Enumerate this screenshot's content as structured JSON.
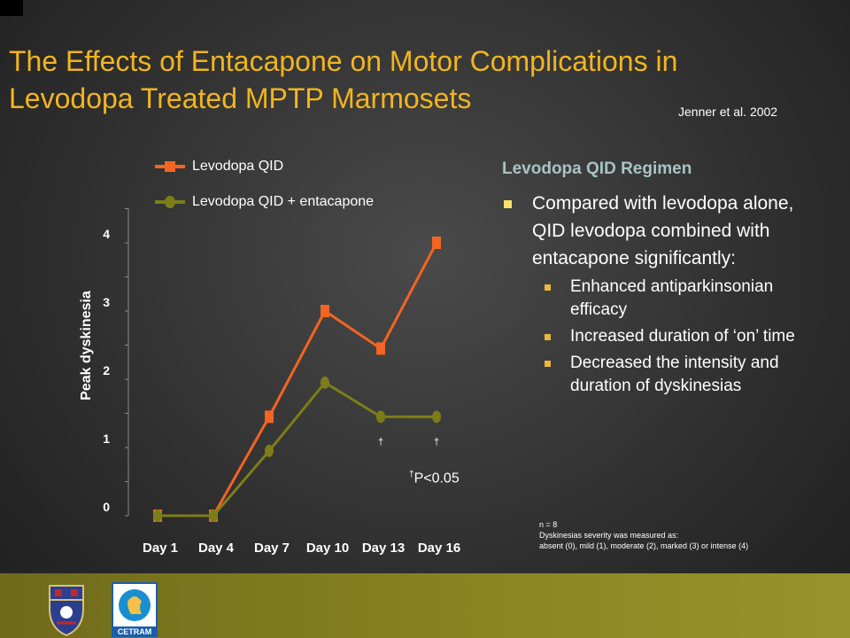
{
  "title": "The Effects of Entacapone on Motor Complications in Levodopa Treated MPTP Marmosets",
  "citation": "Jenner et al. 2002",
  "chart_data": {
    "type": "line",
    "categories": [
      "Day 1",
      "Day 4",
      "Day 7",
      "Day 10",
      "Day 13",
      "Day 16"
    ],
    "series": [
      {
        "name": "Levodopa QID",
        "values": [
          0,
          0,
          1.45,
          3.0,
          2.45,
          4.0
        ],
        "color": "#f26522",
        "marker": "square"
      },
      {
        "name": "Levodopa QID + entacapone",
        "values": [
          0,
          0,
          0.95,
          1.95,
          1.45,
          1.45
        ],
        "color": "#7d7d18",
        "marker": "circle"
      }
    ],
    "ylabel": "Peak dyskinesia",
    "yticks": [
      0,
      1,
      2,
      3,
      4
    ],
    "ylim": [
      0,
      4.5
    ],
    "significance_marks": [
      {
        "category": "Day 13",
        "symbol": "†"
      },
      {
        "category": "Day 16",
        "symbol": "†"
      }
    ],
    "significance_note": {
      "symbol": "†",
      "text": "P<0.05"
    }
  },
  "panel": {
    "heading": "Levodopa QID Regimen",
    "main_bullet": "Compared with levodopa alone, QID levodopa combined with entacapone significantly:",
    "sub_bullets": [
      "Enhanced antiparkinsonian efficacy",
      "Increased duration of ‘on’ time",
      "Decreased the intensity and duration of dyskinesias"
    ]
  },
  "notes": {
    "n": "n = 8",
    "severity_line1": "Dyskinesias severity was measured as:",
    "severity_line2": "absent (0), mild (1), moderate (2), marked (3) or intense (4)"
  },
  "footer": {
    "logo_right_text": "CETRAM",
    "logo_left_icon": "university-crest-icon",
    "logo_right_icon": "cetram-logo-icon"
  }
}
